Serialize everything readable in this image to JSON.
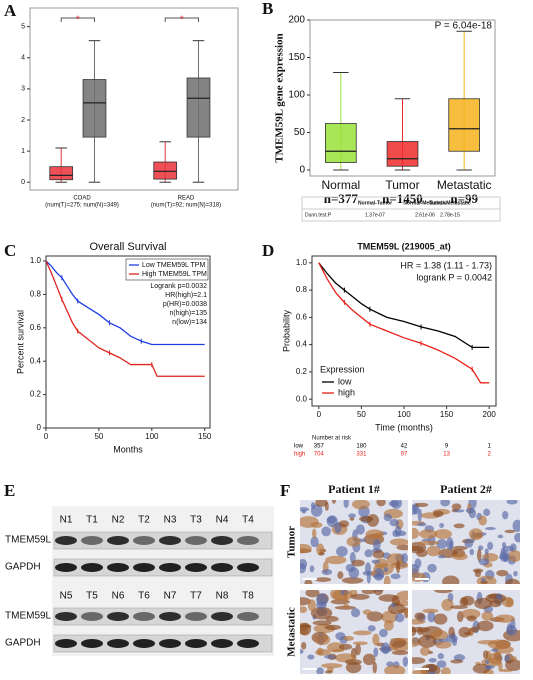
{
  "chart_data": [
    {
      "type": "box",
      "panel": "A",
      "ylim": [
        -0.25,
        5.6
      ],
      "yticks": [
        0,
        1,
        2,
        3,
        4,
        5
      ],
      "groups": [
        {
          "label": "COAD",
          "sublabel": "(num(T)=275; num(N)=349)",
          "significance": "*",
          "boxes": [
            {
              "color": "#e8333a",
              "whisker_low": 0,
              "q1": 0.08,
              "median": 0.22,
              "q3": 0.5,
              "whisker_high": 1.1
            },
            {
              "color": "#6e6e6e",
              "whisker_low": 0,
              "q1": 1.45,
              "median": 2.55,
              "q3": 3.3,
              "whisker_high": 4.55
            }
          ]
        },
        {
          "label": "READ",
          "sublabel": "(num(T)=92; num(N)=318)",
          "significance": "*",
          "boxes": [
            {
              "color": "#e8333a",
              "whisker_low": 0,
              "q1": 0.1,
              "median": 0.35,
              "q3": 0.65,
              "whisker_high": 1.3
            },
            {
              "color": "#6e6e6e",
              "whisker_low": 0,
              "q1": 1.45,
              "median": 2.7,
              "q3": 3.35,
              "whisker_high": 4.55
            }
          ]
        }
      ]
    },
    {
      "type": "box",
      "panel": "B",
      "ylabel": "TMEM59L gene expression",
      "ylim": [
        -8,
        200
      ],
      "yticks": [
        0,
        50,
        100,
        150,
        200
      ],
      "annotation": "P = 6.04e-18",
      "categories": [
        "Normal",
        "Tumor",
        "Metastatic"
      ],
      "n_labels": [
        "n=377",
        "n=1450",
        "n=99"
      ],
      "boxes": [
        {
          "color": "#99e03a",
          "whisker_low": 0,
          "q1": 10,
          "median": 25,
          "q3": 62,
          "whisker_high": 130
        },
        {
          "color": "#ee2a2a",
          "whisker_low": 0,
          "q1": 5,
          "median": 15,
          "q3": 38,
          "whisker_high": 95
        },
        {
          "color": "#f5b21c",
          "whisker_low": 0,
          "q1": 25,
          "median": 55,
          "q3": 95,
          "whisker_high": 185
        }
      ],
      "table": {
        "header": [
          "Normal-Tumor",
          "Normal-Metastatic",
          "Tumor-Metastatic"
        ],
        "row_label": "Dunn.test.P",
        "row": [
          "1.37e-07",
          "2.61e-06",
          "2.78e-15"
        ]
      }
    },
    {
      "type": "km",
      "panel": "C",
      "title": "Overall Survival",
      "xlabel": "Months",
      "ylabel": "Percent survival",
      "xlim": [
        0,
        155
      ],
      "xticks": [
        0,
        50,
        100,
        150
      ],
      "ylim": [
        0,
        1.03
      ],
      "yticks": [
        0,
        0.2,
        0.4,
        0.6,
        0.8,
        {
          "value": 1,
          "label": "1.0"
        }
      ],
      "legend": "top-right",
      "series": [
        {
          "name": "Low TMEM59L TPM",
          "color": "#1f3fe0",
          "x": [
            0,
            5,
            10,
            15,
            20,
            25,
            30,
            40,
            50,
            60,
            70,
            80,
            90,
            100,
            150
          ],
          "values": [
            1,
            0.97,
            0.93,
            0.9,
            0.85,
            0.8,
            0.76,
            0.72,
            0.68,
            0.63,
            0.6,
            0.55,
            0.52,
            0.5,
            0.5
          ]
        },
        {
          "name": "High TMEM59L TPM",
          "color": "#e0241f",
          "x": [
            0,
            5,
            10,
            15,
            20,
            25,
            30,
            40,
            50,
            60,
            70,
            80,
            100,
            105,
            150
          ],
          "values": [
            1,
            0.93,
            0.85,
            0.77,
            0.7,
            0.63,
            0.58,
            0.53,
            0.48,
            0.45,
            0.42,
            0.38,
            0.38,
            0.31,
            0.31
          ]
        }
      ],
      "annotations": [
        "Logrank p=0.0032",
        "HR(high)=2.1",
        "p(HR)=0.0038",
        "n(high)=135",
        "n(low)=134"
      ]
    },
    {
      "type": "km",
      "panel": "D",
      "title": "TMEM59L (219005_at)",
      "xlabel": "Time (months)",
      "ylabel": "Probability",
      "xlim": [
        -8,
        208
      ],
      "xticks": [
        0,
        50,
        100,
        150,
        200
      ],
      "ylim": [
        -0.05,
        1.05
      ],
      "yticks": [
        {
          "value": 0,
          "label": "0.0"
        },
        0.2,
        0.4,
        0.6,
        0.8,
        {
          "value": 1,
          "label": "1.0"
        }
      ],
      "legend": "bottom-left",
      "legend_title": "Expression",
      "series": [
        {
          "name": "low",
          "color": "#000000",
          "x": [
            0,
            10,
            20,
            30,
            40,
            50,
            60,
            80,
            100,
            120,
            140,
            160,
            180,
            200
          ],
          "values": [
            1,
            0.92,
            0.85,
            0.8,
            0.75,
            0.7,
            0.66,
            0.6,
            0.57,
            0.53,
            0.5,
            0.46,
            0.38,
            0.38
          ]
        },
        {
          "name": "high",
          "color": "#e8201a",
          "x": [
            0,
            10,
            20,
            30,
            40,
            50,
            60,
            80,
            100,
            120,
            140,
            160,
            180,
            190,
            200
          ],
          "values": [
            1,
            0.88,
            0.78,
            0.71,
            0.65,
            0.6,
            0.55,
            0.5,
            0.45,
            0.41,
            0.36,
            0.3,
            0.22,
            0.12,
            0.12
          ]
        }
      ],
      "annotations": [
        "HR = 1.38 (1.11 - 1.73)",
        "logrank P = 0.0042"
      ],
      "risk_table": {
        "title": "Number at risk",
        "rows": [
          {
            "label": "low",
            "color": "#000000",
            "values": [
              357,
              180,
              42,
              9,
              1
            ]
          },
          {
            "label": "high",
            "color": "#e8201a",
            "values": [
              704,
              331,
              97,
              13,
              2
            ]
          }
        ]
      }
    }
  ],
  "western_blot": {
    "panel": "E",
    "blocks": [
      {
        "lanes": [
          "N1",
          "T1",
          "N2",
          "T2",
          "N3",
          "T3",
          "N4",
          "T4"
        ],
        "bands": [
          "TMEM59L",
          "GAPDH"
        ]
      },
      {
        "lanes": [
          "N5",
          "T5",
          "N6",
          "T6",
          "N7",
          "T7",
          "N8",
          "T8"
        ],
        "bands": [
          "TMEM59L",
          "GAPDH"
        ]
      }
    ]
  },
  "ihc": {
    "panel": "F",
    "columns": [
      "Patient 1#",
      "Patient 2#"
    ],
    "rows": [
      "Tumor",
      "Metastatic"
    ]
  }
}
